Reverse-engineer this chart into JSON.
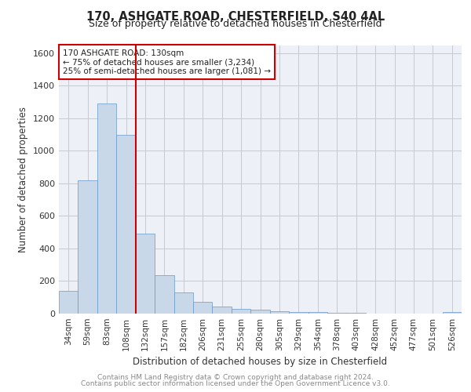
{
  "title1": "170, ASHGATE ROAD, CHESTERFIELD, S40 4AL",
  "title2": "Size of property relative to detached houses in Chesterfield",
  "xlabel": "Distribution of detached houses by size in Chesterfield",
  "ylabel": "Number of detached properties",
  "footer1": "Contains HM Land Registry data © Crown copyright and database right 2024.",
  "footer2": "Contains public sector information licensed under the Open Government Licence v3.0.",
  "categories": [
    "34sqm",
    "59sqm",
    "83sqm",
    "108sqm",
    "132sqm",
    "157sqm",
    "182sqm",
    "206sqm",
    "231sqm",
    "255sqm",
    "280sqm",
    "305sqm",
    "329sqm",
    "354sqm",
    "378sqm",
    "403sqm",
    "428sqm",
    "452sqm",
    "477sqm",
    "501sqm",
    "526sqm"
  ],
  "values": [
    140,
    820,
    1290,
    1100,
    490,
    235,
    130,
    70,
    45,
    30,
    25,
    15,
    10,
    8,
    5,
    3,
    2,
    1,
    1,
    1,
    10
  ],
  "bar_color": "#c8d8e8",
  "bar_edge_color": "#6699cc",
  "highlight_line_color": "#cc0000",
  "annotation_title": "170 ASHGATE ROAD: 130sqm",
  "annotation_line1": "← 75% of detached houses are smaller (3,234)",
  "annotation_line2": "25% of semi-detached houses are larger (1,081) →",
  "annotation_box_color": "#cc0000",
  "annotation_box_fill": "#ffffff",
  "ylim": [
    0,
    1650
  ],
  "yticks": [
    0,
    200,
    400,
    600,
    800,
    1000,
    1200,
    1400,
    1600
  ],
  "grid_color": "#c8c8d0",
  "bg_color": "#edf1f7",
  "title1_fontsize": 10.5,
  "title2_fontsize": 9,
  "ylabel_fontsize": 8.5,
  "xlabel_fontsize": 8.5,
  "tick_fontsize": 7.5,
  "footer_fontsize": 6.5
}
